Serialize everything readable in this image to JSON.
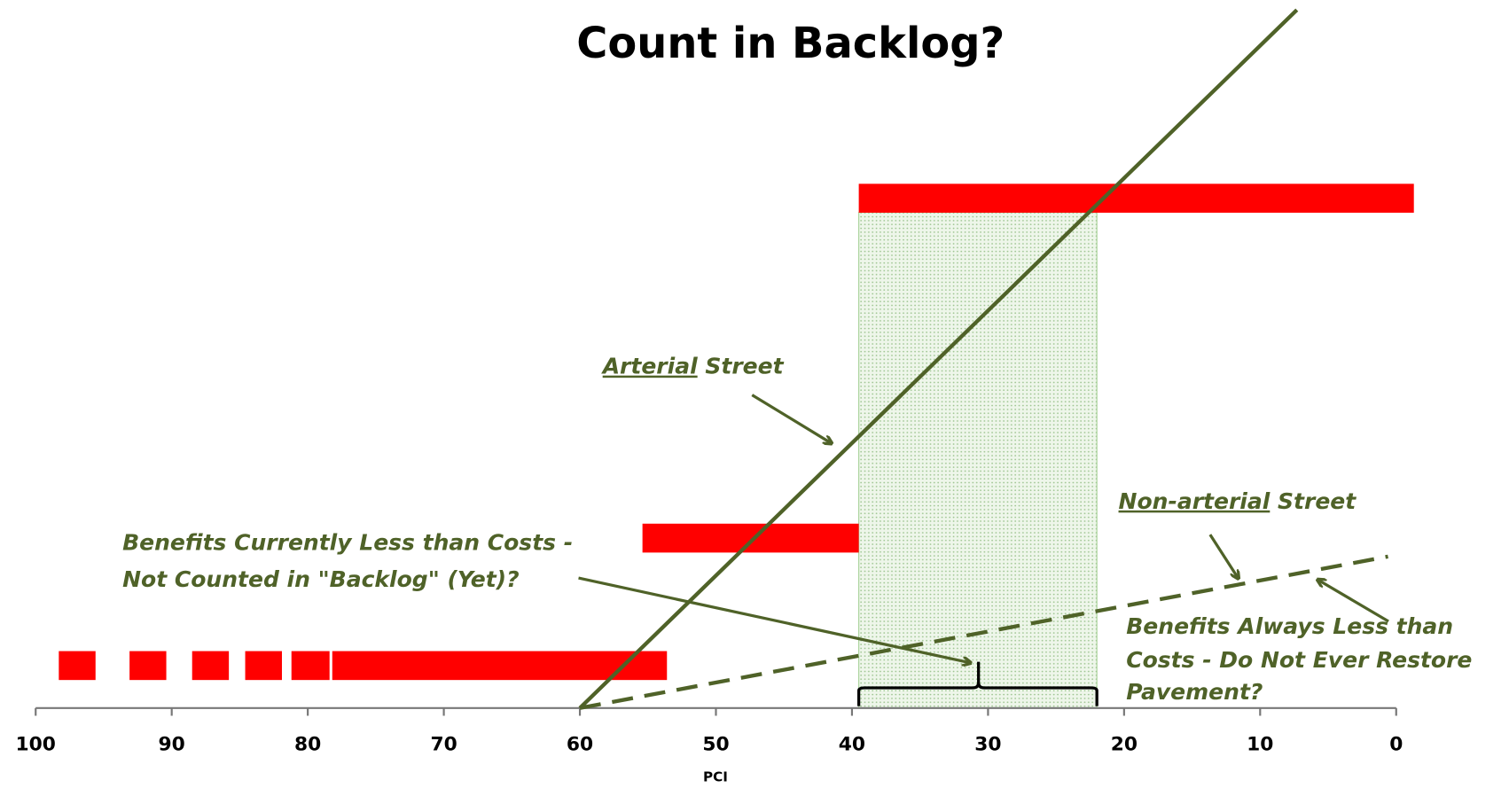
{
  "chart_data": {
    "type": "range-bar",
    "title": "Count in Backlog?",
    "x_label": "PCI",
    "xlim": [
      100,
      0
    ],
    "xticks": [
      100,
      90,
      80,
      70,
      60,
      50,
      40,
      30,
      20,
      10,
      0
    ],
    "ylim": [
      0,
      100
    ],
    "bar_color": "#ff0000",
    "bars": [
      {
        "start": 98.3,
        "end": 95.6,
        "level": 6
      },
      {
        "start": 93.1,
        "end": 90.4,
        "level": 6
      },
      {
        "start": 88.5,
        "end": 85.8,
        "level": 6
      },
      {
        "start": 84.6,
        "end": 81.9,
        "level": 6
      },
      {
        "start": 81.2,
        "end": 78.4,
        "level": 6
      },
      {
        "start": 78.2,
        "end": 53.6,
        "level": 6
      },
      {
        "start": 55.4,
        "end": 39.5,
        "level": 24
      },
      {
        "start": 39.5,
        "end": -1.3,
        "level": 72
      }
    ],
    "lines": [
      {
        "color": "#4f6228",
        "style": "solid",
        "x": [
          60,
          7.3
        ],
        "y": [
          0,
          98.6
        ]
      },
      {
        "color": "#4f6228",
        "style": "dashed",
        "x": [
          60,
          0.6
        ],
        "y": [
          0,
          21.4
        ]
      }
    ],
    "highlight": {
      "start": 39.5,
      "end": 22,
      "top": 70
    },
    "brace": {
      "start": 39.5,
      "end": 22,
      "tip": 30.7
    },
    "annotations": {
      "arterial": {
        "underlined": "Arterial",
        "rest": " Street"
      },
      "non_arterial": {
        "underlined": "Non-arterial",
        "rest": " Street"
      },
      "currently": [
        "Benefits Currently Less than Costs -",
        "Not Counted in \"Backlog\" (Yet)?"
      ],
      "always": [
        "Benefits Always Less than",
        "Costs - Do Not Ever Restore",
        "Pavement?"
      ]
    }
  }
}
